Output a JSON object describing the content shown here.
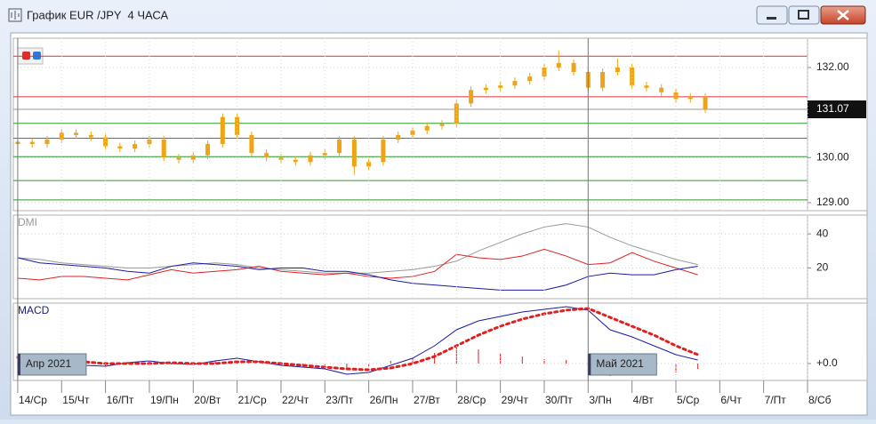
{
  "window": {
    "title": "График EUR /JPY  4 ЧАСА"
  },
  "chart_data": [
    {
      "type": "candlestick",
      "color": "#eea414",
      "xlim": [
        -0.1,
        18
      ],
      "ylim": [
        128.82,
        132.65
      ],
      "yticks": [
        {
          "value": 132,
          "label": "132.00"
        },
        {
          "value": 130,
          "label": "130.00"
        },
        {
          "value": 129,
          "label": "129.00"
        }
      ],
      "last": {
        "value": 131.07,
        "label": "131.07"
      },
      "hlines": [
        {
          "value": 132.25,
          "color": "#e03030"
        },
        {
          "value": 131.35,
          "color": "#e03030"
        },
        {
          "value": 130.76,
          "color": "#2a9a2a"
        },
        {
          "value": 130.43,
          "color": "#2a9a2a"
        },
        {
          "value": 130.02,
          "color": "#2a9a2a"
        },
        {
          "value": 129.49,
          "color": "#2a9a2a"
        },
        {
          "value": 129.06,
          "color": "#2a9a2a"
        }
      ],
      "x": [
        0,
        0.33,
        0.67,
        1,
        1.33,
        1.67,
        2,
        2.33,
        2.67,
        3,
        3.33,
        3.67,
        4,
        4.33,
        4.67,
        5,
        5.33,
        5.67,
        6,
        6.33,
        6.67,
        7,
        7.33,
        7.67,
        8,
        8.33,
        8.67,
        9,
        9.33,
        9.67,
        10,
        10.33,
        10.67,
        11,
        11.33,
        11.67,
        12,
        12.33,
        12.67,
        13,
        13.33,
        13.67,
        14,
        14.33,
        14.67,
        15,
        15.33,
        15.67
      ],
      "open": [
        130.3,
        130.35,
        130.3,
        130.4,
        130.55,
        130.5,
        130.45,
        130.25,
        130.2,
        130.3,
        130.4,
        130.0,
        129.95,
        130.05,
        130.3,
        130.9,
        130.5,
        130.1,
        130.0,
        129.95,
        129.9,
        130.05,
        130.1,
        130.4,
        129.8,
        129.9,
        130.4,
        130.5,
        130.6,
        130.7,
        130.75,
        131.2,
        131.5,
        131.55,
        131.6,
        131.7,
        131.8,
        132.0,
        132.1,
        131.9,
        131.55,
        131.9,
        132.0,
        131.6,
        131.55,
        131.45,
        131.3,
        131.35
      ],
      "high": [
        130.43,
        130.43,
        130.48,
        130.63,
        130.63,
        130.58,
        130.53,
        130.33,
        130.38,
        130.48,
        130.48,
        130.08,
        130.13,
        130.38,
        130.98,
        130.98,
        130.58,
        130.18,
        130.08,
        130.03,
        130.13,
        130.18,
        130.48,
        130.48,
        129.98,
        130.48,
        130.58,
        130.68,
        130.78,
        130.83,
        131.28,
        131.58,
        131.63,
        131.68,
        131.78,
        131.88,
        132.08,
        132.38,
        132.18,
        131.98,
        131.98,
        132.2,
        132.08,
        131.68,
        131.63,
        131.53,
        131.43,
        131.43
      ],
      "low": [
        130.22,
        130.22,
        130.22,
        130.32,
        130.42,
        130.37,
        130.17,
        130.12,
        130.12,
        130.22,
        129.92,
        129.87,
        129.87,
        129.97,
        130.22,
        130.42,
        130.02,
        129.92,
        129.87,
        129.82,
        129.82,
        129.97,
        130.02,
        129.62,
        129.72,
        129.82,
        130.32,
        130.42,
        130.52,
        130.62,
        130.67,
        131.12,
        131.42,
        131.47,
        131.52,
        131.62,
        131.72,
        131.92,
        131.82,
        131.47,
        131.47,
        131.82,
        131.52,
        131.47,
        131.37,
        131.22,
        131.22,
        130.99
      ],
      "close": [
        130.35,
        130.3,
        130.4,
        130.55,
        130.5,
        130.45,
        130.25,
        130.2,
        130.3,
        130.4,
        130.0,
        129.95,
        130.05,
        130.3,
        130.9,
        130.5,
        130.1,
        130.0,
        129.95,
        129.9,
        130.05,
        130.1,
        130.4,
        129.8,
        129.9,
        130.4,
        130.5,
        130.6,
        130.7,
        130.75,
        131.2,
        131.5,
        131.55,
        131.6,
        131.7,
        131.8,
        132.0,
        132.1,
        131.9,
        131.55,
        131.9,
        132.0,
        131.6,
        131.55,
        131.45,
        131.3,
        131.35,
        131.07
      ]
    },
    {
      "type": "line",
      "title": "DMI",
      "title_color": "#999999",
      "xlim": [
        -0.1,
        18
      ],
      "ylim": [
        2,
        51
      ],
      "yticks": [
        20,
        40
      ],
      "x": [
        0,
        0.5,
        1,
        1.5,
        2,
        2.5,
        3,
        3.5,
        4,
        4.5,
        5,
        5.5,
        6,
        6.5,
        7,
        7.5,
        8,
        8.5,
        9,
        9.5,
        10,
        10.5,
        11,
        11.5,
        12,
        12.5,
        13,
        13.5,
        14,
        14.5,
        15,
        15.5
      ],
      "series": [
        {
          "color": "#999999",
          "values": [
            26,
            25,
            23,
            22,
            21,
            20,
            20,
            21,
            22,
            23,
            22,
            20,
            19,
            18,
            17,
            17,
            17,
            18,
            19,
            21,
            24,
            30,
            35,
            40,
            44,
            46,
            44,
            38,
            33,
            29,
            25,
            22
          ]
        },
        {
          "color": "#e02020",
          "values": [
            14,
            13,
            15,
            15,
            14,
            13,
            16,
            19,
            17,
            18,
            19,
            21,
            18,
            17,
            16,
            17,
            15,
            14,
            15,
            18,
            28,
            26,
            25,
            27,
            31,
            27,
            22,
            23,
            29,
            24,
            20,
            16
          ]
        },
        {
          "color": "#1a1aa8",
          "values": [
            26,
            23,
            22,
            21,
            20,
            18,
            17,
            21,
            23,
            22,
            21,
            19,
            20,
            20,
            18,
            18,
            16,
            13,
            11,
            10,
            9,
            8,
            7,
            7,
            7,
            10,
            15,
            17,
            16,
            16,
            19,
            21
          ]
        }
      ]
    },
    {
      "type": "line",
      "title": "MACD",
      "title_color": "#1a1a7a",
      "xlim": [
        -0.1,
        18
      ],
      "ylim": [
        -0.19,
        0.68
      ],
      "yticks": [
        {
          "value": 0,
          "label": "+0.0"
        }
      ],
      "x": [
        0,
        0.5,
        1,
        1.5,
        2,
        2.5,
        3,
        3.5,
        4,
        4.5,
        5,
        5.5,
        6,
        6.5,
        7,
        7.5,
        8,
        8.5,
        9,
        9.5,
        10,
        10.5,
        11,
        11.5,
        12,
        12.5,
        13,
        13.5,
        14,
        14.5,
        15,
        15.5
      ],
      "series": [
        {
          "color": "#1a1aa8",
          "style": "solid",
          "values": [
            0.05,
            0.06,
            0.02,
            -0.02,
            -0.03,
            0.01,
            0.03,
            0.0,
            -0.01,
            0.03,
            0.06,
            0.02,
            -0.02,
            -0.04,
            -0.06,
            -0.12,
            -0.1,
            -0.02,
            0.06,
            0.2,
            0.38,
            0.48,
            0.53,
            0.58,
            0.61,
            0.64,
            0.6,
            0.38,
            0.3,
            0.2,
            0.1,
            0.04
          ]
        },
        {
          "color": "#e02020",
          "style": "dotted",
          "values": [
            0.07,
            0.06,
            0.04,
            0.02,
            0.0,
            0.0,
            0.0,
            0.01,
            0.0,
            0.0,
            0.02,
            0.02,
            0.0,
            -0.02,
            -0.04,
            -0.06,
            -0.07,
            -0.05,
            0.0,
            0.08,
            0.2,
            0.32,
            0.42,
            0.5,
            0.56,
            0.6,
            0.62,
            0.52,
            0.42,
            0.32,
            0.2,
            0.1
          ]
        }
      ],
      "histogram": {
        "color": "#e02020",
        "values": [
          -0.02,
          0,
          -0.02,
          -0.04,
          -0.03,
          0.01,
          0.03,
          -0.01,
          -0.01,
          0.03,
          0.04,
          0,
          -0.02,
          -0.02,
          -0.02,
          -0.06,
          -0.03,
          0.03,
          0.06,
          0.12,
          0.18,
          0.16,
          0.11,
          0.08,
          0.05,
          0.04,
          -0.02,
          -0.14,
          -0.12,
          -0.12,
          -0.1,
          -0.06
        ]
      },
      "xticks": [
        {
          "value": 0,
          "label": "14/Ср"
        },
        {
          "value": 1,
          "label": "15/Чт"
        },
        {
          "value": 2,
          "label": "16/Пт"
        },
        {
          "value": 3,
          "label": "19/Пн"
        },
        {
          "value": 4,
          "label": "20/Вт"
        },
        {
          "value": 5,
          "label": "21/Ср"
        },
        {
          "value": 6,
          "label": "22/Чт"
        },
        {
          "value": 7,
          "label": "23/Пт"
        },
        {
          "value": 8,
          "label": "26/Пн"
        },
        {
          "value": 9,
          "label": "27/Вт"
        },
        {
          "value": 10,
          "label": "28/Ср"
        },
        {
          "value": 11,
          "label": "29/Чт"
        },
        {
          "value": 12,
          "label": "30/Пт"
        },
        {
          "value": 13,
          "label": "3/Пн"
        },
        {
          "value": 14,
          "label": "4/Вт"
        },
        {
          "value": 15,
          "label": "5/Ср"
        },
        {
          "value": 16,
          "label": "6/Чт"
        },
        {
          "value": 17,
          "label": "7/Пт"
        },
        {
          "value": 18,
          "label": "8/Сб"
        }
      ],
      "annotations": [
        {
          "x": 0,
          "text": "Апр 2021"
        },
        {
          "x": 13,
          "text": "Май 2021"
        }
      ]
    }
  ]
}
